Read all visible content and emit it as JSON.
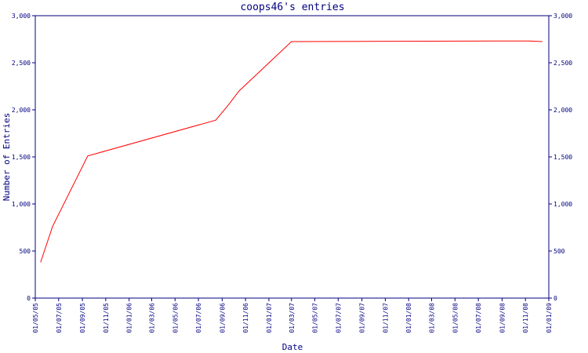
{
  "chart_data": {
    "type": "line",
    "title": "coops46's entries",
    "xlabel": "Date",
    "ylabel": "Number of Entries",
    "ylim": [
      0,
      3000
    ],
    "yticks": [
      0,
      500,
      1000,
      1500,
      2000,
      2500,
      3000
    ],
    "ytick_labels": [
      "0",
      "500",
      "1,000",
      "1,500",
      "2,000",
      "2,500",
      "3,000"
    ],
    "xticks": [
      "01/05/05",
      "01/07/05",
      "01/09/05",
      "01/11/05",
      "01/01/06",
      "01/03/06",
      "01/05/06",
      "01/07/06",
      "01/09/06",
      "01/11/06",
      "01/01/07",
      "01/03/07",
      "01/05/07",
      "01/07/07",
      "01/09/07",
      "01/11/07",
      "01/01/08",
      "01/03/08",
      "01/05/08",
      "01/07/08",
      "01/09/08",
      "01/11/08",
      "01/01/09"
    ],
    "line_color": "#ff0000",
    "axis_color": "#000080",
    "grid": false,
    "series": [
      {
        "points": [
          {
            "x": "2005-05-15",
            "y": 380
          },
          {
            "x": "2005-06-15",
            "y": 760
          },
          {
            "x": "2005-09-15",
            "y": 1510
          },
          {
            "x": "2006-08-15",
            "y": 1890
          },
          {
            "x": "2006-09-15",
            "y": 2040
          },
          {
            "x": "2006-10-15",
            "y": 2200
          },
          {
            "x": "2007-03-01",
            "y": 2725
          },
          {
            "x": "2007-12-01",
            "y": 2728
          },
          {
            "x": "2008-11-10",
            "y": 2732
          },
          {
            "x": "2008-12-15",
            "y": 2725
          }
        ]
      }
    ]
  }
}
